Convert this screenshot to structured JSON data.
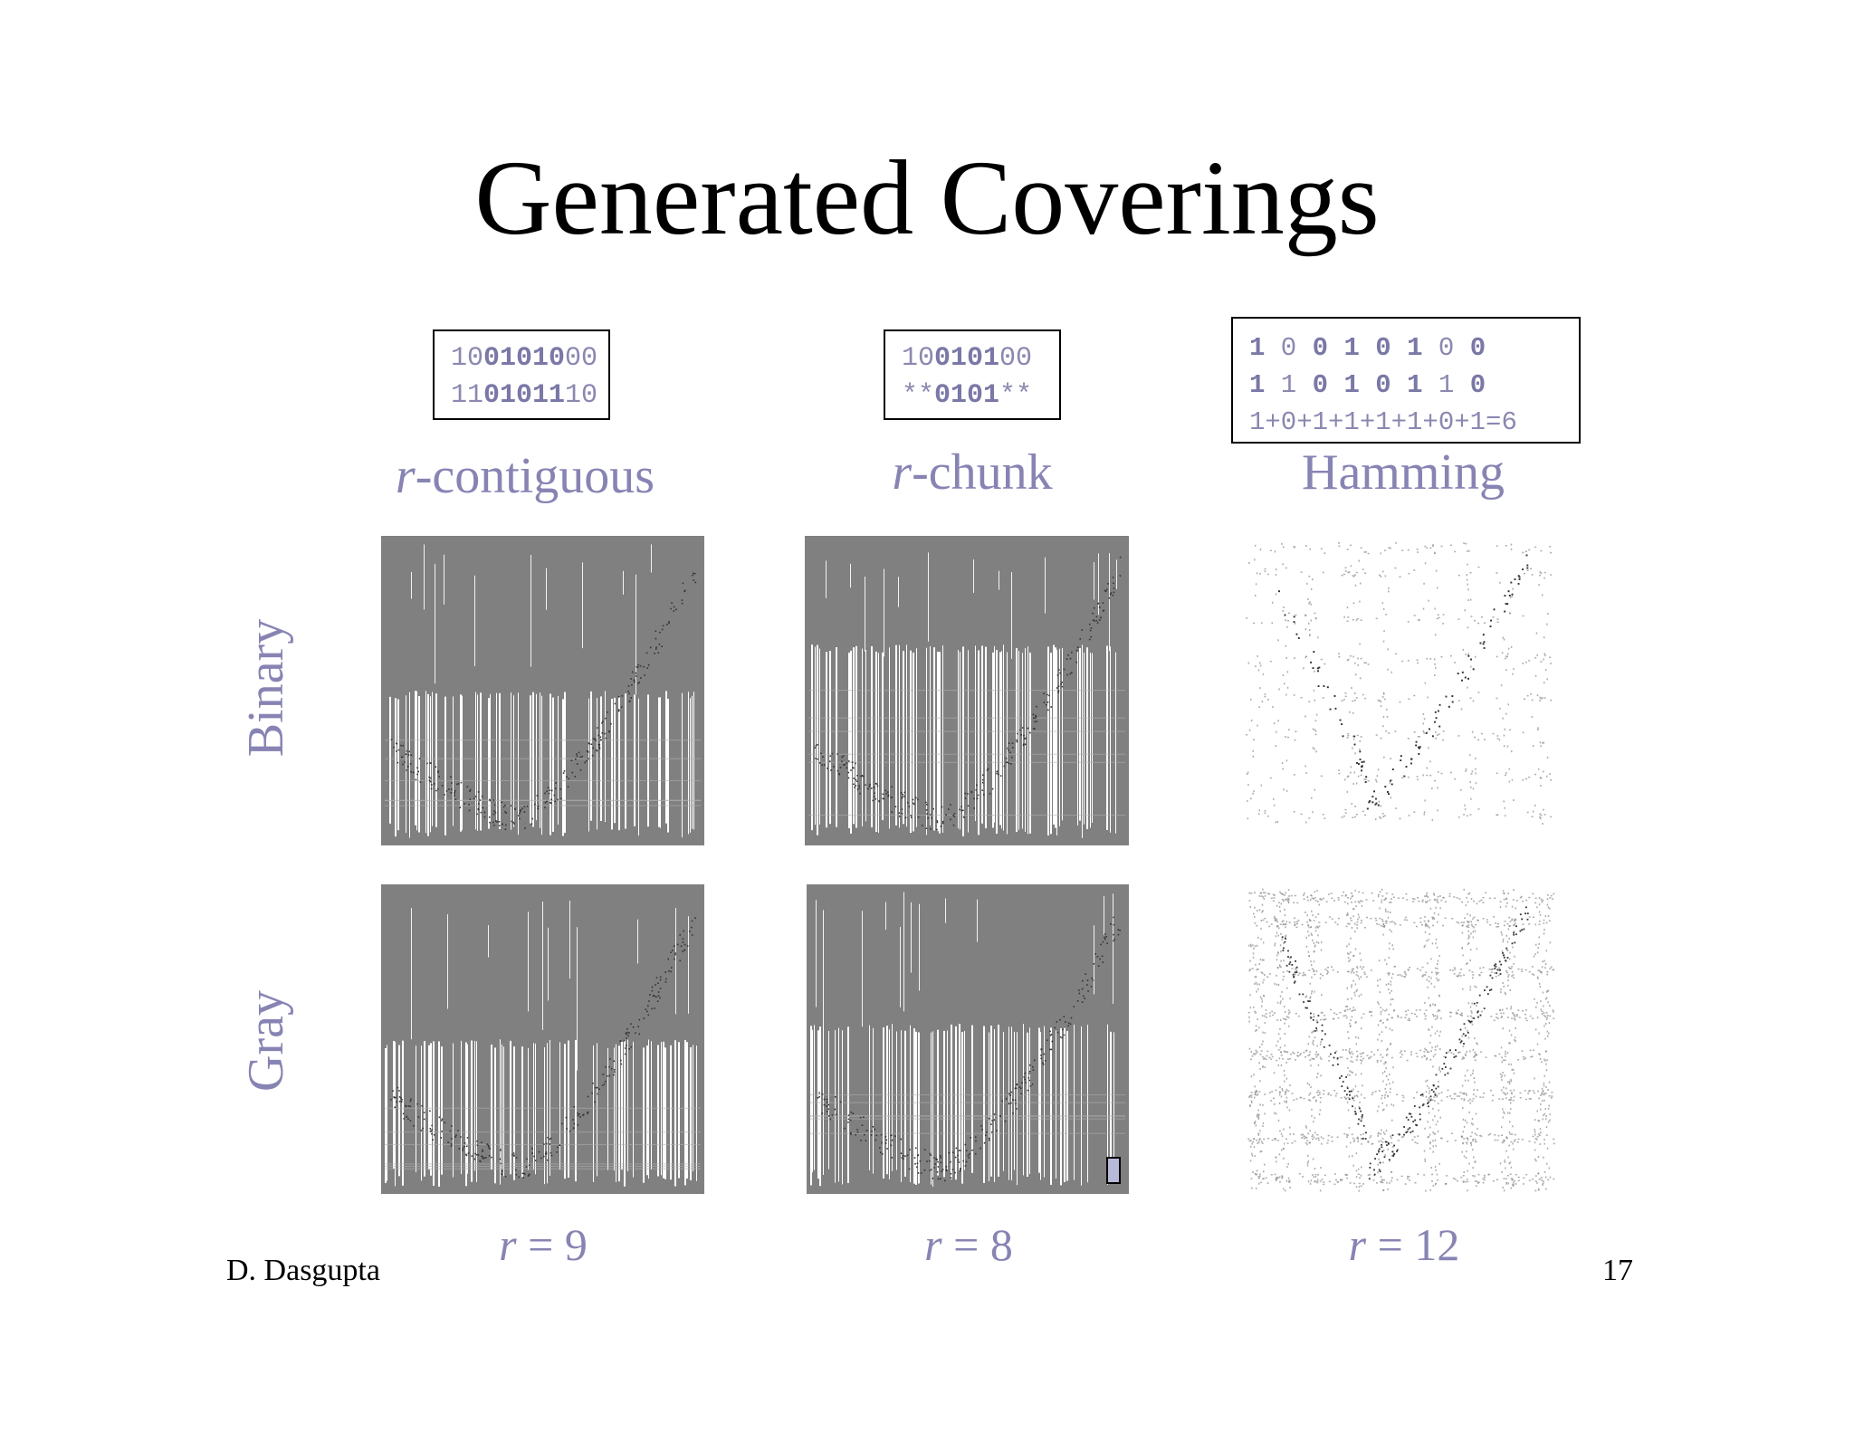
{
  "slide": {
    "title": "Generated Coverings",
    "author": "D. Dasgupta",
    "page_number": "17"
  },
  "columns": [
    {
      "label_italic": "r",
      "label_rest": "-contiguous",
      "code_lines": [
        [
          {
            "t": "10",
            "b": false
          },
          {
            "t": "01010",
            "b": true
          },
          {
            "t": "0",
            "b": false
          },
          {
            "t": "0",
            "b": false
          }
        ],
        [
          {
            "t": "11",
            "b": false
          },
          {
            "t": "01011",
            "b": true
          },
          {
            "t": "1",
            "b": false
          },
          {
            "t": "0",
            "b": false
          }
        ]
      ],
      "r_italic": "r",
      "r_rest": " = 9"
    },
    {
      "label_italic": "r",
      "label_rest": "-chunk",
      "code_lines": [
        [
          {
            "t": "10",
            "b": false
          },
          {
            "t": "0101",
            "b": true
          },
          {
            "t": "00",
            "b": false
          }
        ],
        [
          {
            "t": "**",
            "b": false
          },
          {
            "t": "0101",
            "b": true
          },
          {
            "t": "**",
            "b": false
          }
        ]
      ],
      "r_italic": "r",
      "r_rest": " = 8"
    },
    {
      "label_italic": "",
      "label_rest": "Hamming",
      "code_lines": [
        [
          {
            "t": "1",
            "b": true
          },
          {
            "t": " 0 ",
            "b": false
          },
          {
            "t": "0",
            "b": true
          },
          {
            "t": " ",
            "b": false
          },
          {
            "t": "1",
            "b": true
          },
          {
            "t": " ",
            "b": false
          },
          {
            "t": "0",
            "b": true
          },
          {
            "t": " ",
            "b": false
          },
          {
            "t": "1",
            "b": true
          },
          {
            "t": " 0 ",
            "b": false
          },
          {
            "t": "0",
            "b": true
          }
        ],
        [
          {
            "t": "1",
            "b": true
          },
          {
            "t": " 1 ",
            "b": false
          },
          {
            "t": "0",
            "b": true
          },
          {
            "t": " ",
            "b": false
          },
          {
            "t": "1",
            "b": true
          },
          {
            "t": " ",
            "b": false
          },
          {
            "t": "0",
            "b": true
          },
          {
            "t": " ",
            "b": false
          },
          {
            "t": "1",
            "b": true
          },
          {
            "t": " 1 ",
            "b": false
          },
          {
            "t": "0",
            "b": true
          }
        ],
        [
          {
            "t": "1+0+1+1+1+1+0+1=6",
            "b": false
          }
        ]
      ],
      "r_italic": "r",
      "r_rest": " = 12"
    }
  ],
  "rows": [
    {
      "label": "Binary"
    },
    {
      "label": "Gray"
    }
  ],
  "colors": {
    "label": "#8784b4",
    "panel_gray": "#808080",
    "dot": "#333333"
  }
}
